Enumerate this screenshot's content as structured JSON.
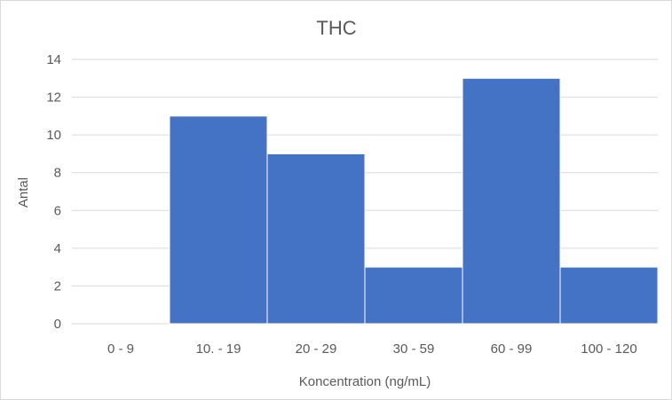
{
  "chart_data": {
    "type": "bar",
    "title": "THC",
    "xlabel": "Koncentration (ng/mL)",
    "ylabel": "Antal",
    "categories": [
      "0 - 9",
      "10. - 19",
      "20 - 29",
      "30 - 59",
      "60 - 99",
      "100 - 120"
    ],
    "values": [
      0,
      11,
      9,
      3,
      13,
      3
    ],
    "ylim": [
      0,
      14
    ],
    "yticks": [
      0,
      2,
      4,
      6,
      8,
      10,
      12,
      14
    ],
    "grid": true,
    "legend": "none",
    "bar_color": "#4472c4"
  }
}
